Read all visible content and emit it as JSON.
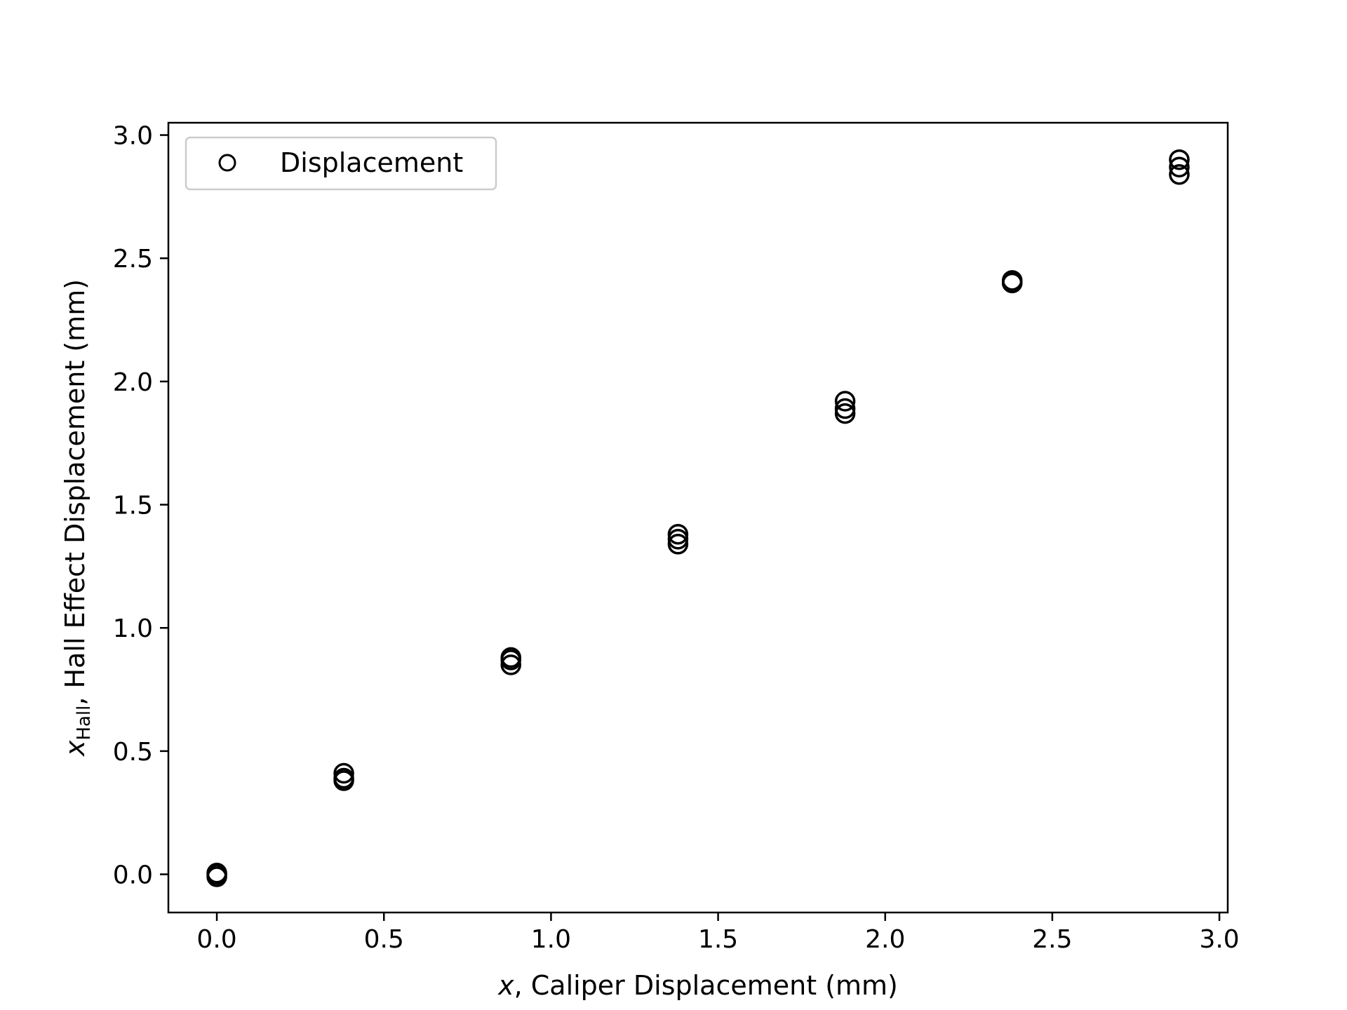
{
  "chart_data": {
    "type": "scatter",
    "title": "",
    "xlabel": {
      "var": "x",
      "text": ", Caliper Displacement (mm)"
    },
    "ylabel": {
      "var": "x",
      "sub": "Hall",
      "text": ", Hall Effect Displacement (mm)"
    },
    "xlim": [
      -0.145,
      3.025
    ],
    "ylim": [
      -0.155,
      3.05
    ],
    "xticks": [
      0.0,
      0.5,
      1.0,
      1.5,
      2.0,
      2.5,
      3.0
    ],
    "xtick_labels": [
      "0.0",
      "0.5",
      "1.0",
      "1.5",
      "2.0",
      "2.5",
      "3.0"
    ],
    "yticks": [
      0.0,
      0.5,
      1.0,
      1.5,
      2.0,
      2.5,
      3.0
    ],
    "ytick_labels": [
      "0.0",
      "0.5",
      "1.0",
      "1.5",
      "2.0",
      "2.5",
      "3.0"
    ],
    "grid": false,
    "legend": {
      "placement": "top-left",
      "marker": "open-circle"
    },
    "series": [
      {
        "name": "Displacement",
        "marker": "open-circle",
        "color": "#000000",
        "points": [
          {
            "x": 0.0,
            "y": 0.0
          },
          {
            "x": 0.0,
            "y": -0.01
          },
          {
            "x": 0.0,
            "y": 0.005
          },
          {
            "x": 0.38,
            "y": 0.41
          },
          {
            "x": 0.38,
            "y": 0.39
          },
          {
            "x": 0.38,
            "y": 0.38
          },
          {
            "x": 0.88,
            "y": 0.88
          },
          {
            "x": 0.88,
            "y": 0.87
          },
          {
            "x": 0.88,
            "y": 0.85
          },
          {
            "x": 1.38,
            "y": 1.38
          },
          {
            "x": 1.38,
            "y": 1.36
          },
          {
            "x": 1.38,
            "y": 1.34
          },
          {
            "x": 1.88,
            "y": 1.92
          },
          {
            "x": 1.88,
            "y": 1.89
          },
          {
            "x": 1.88,
            "y": 1.87
          },
          {
            "x": 2.38,
            "y": 2.41
          },
          {
            "x": 2.38,
            "y": 2.4
          },
          {
            "x": 2.38,
            "y": 2.4
          },
          {
            "x": 2.88,
            "y": 2.9
          },
          {
            "x": 2.88,
            "y": 2.87
          },
          {
            "x": 2.88,
            "y": 2.84
          }
        ]
      }
    ]
  }
}
